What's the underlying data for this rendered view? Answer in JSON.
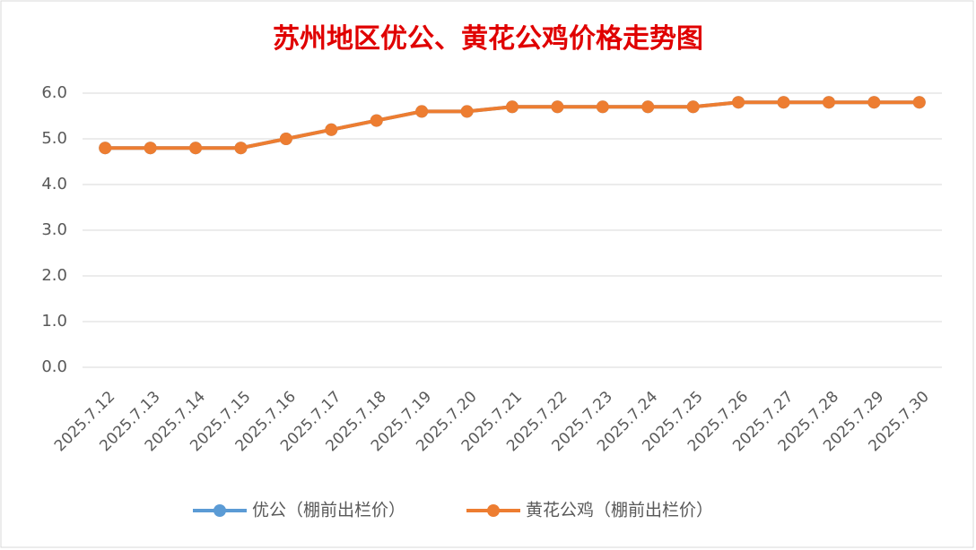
{
  "chart_data": {
    "type": "line",
    "title": "苏州地区优公、黄花公鸡价格走势图",
    "categories": [
      "2025.7.12",
      "2025.7.13",
      "2025.7.14",
      "2025.7.15",
      "2025.7.16",
      "2025.7.17",
      "2025.7.18",
      "2025.7.19",
      "2025.7.20",
      "2025.7.21",
      "2025.7.22",
      "2025.7.23",
      "2025.7.24",
      "2025.7.25",
      "2025.7.26",
      "2025.7.27",
      "2025.7.28",
      "2025.7.29",
      "2025.7.30"
    ],
    "series": [
      {
        "name": "优公（棚前出栏价）",
        "color": "#5b9bd5",
        "values": [
          4.8,
          4.8,
          4.8,
          4.8,
          5.0,
          5.2,
          5.4,
          5.6,
          5.6,
          5.7,
          5.7,
          5.7,
          5.7,
          5.7,
          5.8,
          5.8,
          5.8,
          5.8,
          5.8
        ]
      },
      {
        "name": "黄花公鸡（棚前出栏价）",
        "color": "#ed7d31",
        "values": [
          4.8,
          4.8,
          4.8,
          4.8,
          5.0,
          5.2,
          5.4,
          5.6,
          5.6,
          5.7,
          5.7,
          5.7,
          5.7,
          5.7,
          5.8,
          5.8,
          5.8,
          5.8,
          5.8
        ]
      }
    ],
    "ylim": [
      0,
      6
    ],
    "yticks": [
      {
        "value": 0,
        "label": "0.0"
      },
      {
        "value": 1,
        "label": "1.0"
      },
      {
        "value": 2,
        "label": "2.0"
      },
      {
        "value": 3,
        "label": "3.0"
      },
      {
        "value": 4,
        "label": "4.0"
      },
      {
        "value": 5,
        "label": "5.0"
      },
      {
        "value": 6,
        "label": "6.0"
      }
    ],
    "grid": true,
    "legend": "bottom"
  }
}
